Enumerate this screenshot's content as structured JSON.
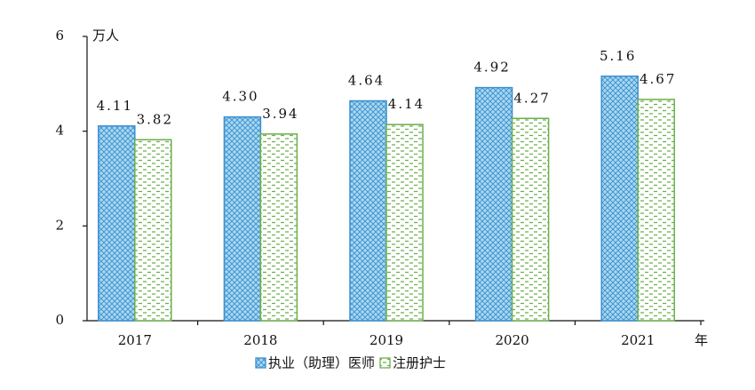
{
  "chart_data": {
    "type": "bar",
    "y_unit": "万人",
    "x_unit": "年",
    "categories": [
      "2017",
      "2018",
      "2019",
      "2020",
      "2021"
    ],
    "series": [
      {
        "name": "执业（助理）医师",
        "color": "#3a8fd0",
        "values": [
          4.11,
          4.3,
          4.64,
          4.92,
          5.16
        ],
        "value_labels": [
          "4.11",
          "4.30",
          "4.64",
          "4.92",
          "5.16"
        ]
      },
      {
        "name": "注册护士",
        "color": "#6ab04c",
        "values": [
          3.82,
          3.94,
          4.14,
          4.27,
          4.67
        ],
        "value_labels": [
          "3.82",
          "3.94",
          "4.14",
          "4.27",
          "4.67"
        ]
      }
    ],
    "ylim": [
      0,
      6
    ],
    "yticks": [
      0,
      2,
      4,
      6
    ],
    "grid": false
  }
}
